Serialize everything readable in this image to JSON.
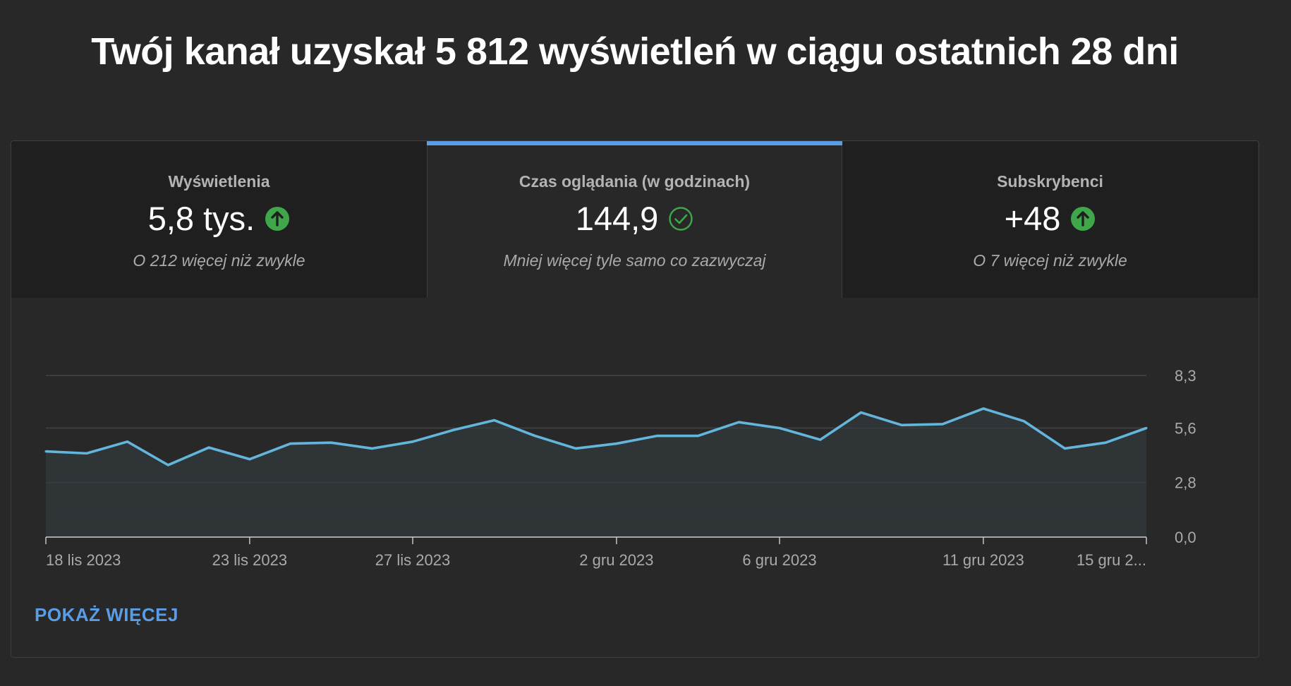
{
  "headline": "Twój kanał uzyskał 5 812 wyświetleń w ciągu ostatnich 28 dni",
  "tabs": [
    {
      "title": "Wyświetlenia",
      "value": "5,8 tys.",
      "badge": "arrow-up-icon",
      "subtitle": "O 212 więcej niż zwykle",
      "selected": false
    },
    {
      "title": "Czas oglądania (w godzinach)",
      "value": "144,9",
      "badge": "check-circle-icon",
      "subtitle": "Mniej więcej tyle samo co zazwyczaj",
      "selected": true
    },
    {
      "title": "Subskrybenci",
      "value": "+48",
      "badge": "arrow-up-icon",
      "subtitle": "O 7 więcej niż zwykle",
      "selected": false
    }
  ],
  "colors": {
    "accent": "#5a9ce6",
    "line": "#64b5dc",
    "badge_up": "#3fa74a",
    "badge_check": "#3fa74a",
    "area_fill": "#2f3538"
  },
  "chart_data": {
    "type": "area",
    "ylim": [
      0,
      8.3
    ],
    "yticks": [
      "0,0",
      "2,8",
      "5,6",
      "8,3"
    ],
    "ytick_values": [
      0,
      2.8,
      5.6,
      8.3
    ],
    "xticks": [
      {
        "label": "18 lis 2023",
        "index": 0
      },
      {
        "label": "23 lis 2023",
        "index": 5
      },
      {
        "label": "27 lis 2023",
        "index": 9
      },
      {
        "label": "2 gru 2023",
        "index": 14
      },
      {
        "label": "6 gru 2023",
        "index": 18
      },
      {
        "label": "11 gru 2023",
        "index": 23
      },
      {
        "label": "15 gru 2...",
        "index": 27
      }
    ],
    "x": [
      "18 lis 2023",
      "19 lis 2023",
      "20 lis 2023",
      "21 lis 2023",
      "22 lis 2023",
      "23 lis 2023",
      "24 lis 2023",
      "25 lis 2023",
      "26 lis 2023",
      "27 lis 2023",
      "28 lis 2023",
      "29 lis 2023",
      "30 lis 2023",
      "1 gru 2023",
      "2 gru 2023",
      "3 gru 2023",
      "4 gru 2023",
      "5 gru 2023",
      "6 gru 2023",
      "7 gru 2023",
      "8 gru 2023",
      "9 gru 2023",
      "10 gru 2023",
      "11 gru 2023",
      "12 gru 2023",
      "13 gru 2023",
      "14 gru 2023",
      "15 gru 2023"
    ],
    "series": [
      {
        "values": [
          4.4,
          4.3,
          4.9,
          3.7,
          4.6,
          4.0,
          4.8,
          4.85,
          4.55,
          4.9,
          5.5,
          6.0,
          5.2,
          4.55,
          4.8,
          5.2,
          5.2,
          5.9,
          5.6,
          5.0,
          6.4,
          5.75,
          5.8,
          6.6,
          5.95,
          4.55,
          4.85,
          5.6
        ]
      }
    ],
    "grid": true
  },
  "footer": {
    "show_more_label": "POKAŻ WIĘCEJ"
  }
}
